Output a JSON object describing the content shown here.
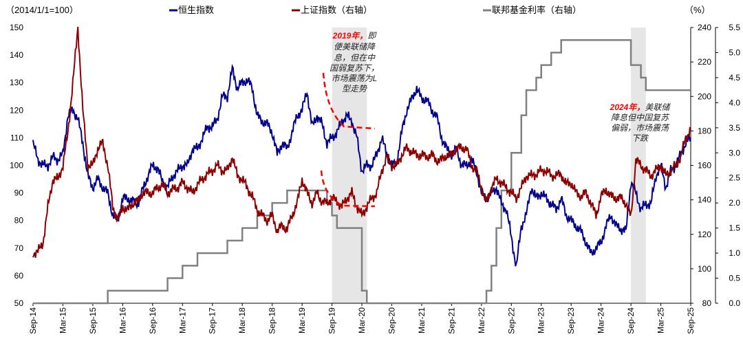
{
  "chart_data": {
    "type": "line",
    "left_axis_label": "（2014/1/1=100）",
    "right_axis_unit": "（%）",
    "left_ylim": [
      50,
      150
    ],
    "left_ticks": [
      "150",
      "140",
      "130",
      "120",
      "110",
      "100",
      "90",
      "80",
      "70",
      "60",
      "50"
    ],
    "right1_ylim": [
      80,
      240
    ],
    "right1_ticks": [
      "240",
      "220",
      "200",
      "180",
      "160",
      "140",
      "120",
      "100",
      "80"
    ],
    "right2_ylim": [
      0,
      5.5
    ],
    "right2_ticks": [
      "5.5",
      "5.0",
      "4.5",
      "4.0",
      "3.5",
      "3.0",
      "2.5",
      "2.0",
      "1.5",
      "1.0",
      "0.5",
      "0.0"
    ],
    "x_ticks": [
      "Sep-14",
      "Mar-15",
      "Sep-15",
      "Mar-16",
      "Sep-16",
      "Mar-17",
      "Sep-17",
      "Mar-18",
      "Sep-18",
      "Mar-19",
      "Sep-19",
      "Mar-20",
      "Sep-20",
      "Mar-21",
      "Sep-21",
      "Mar-22",
      "Sep-22",
      "Mar-23",
      "Sep-23",
      "Mar-24",
      "Sep-24",
      "Mar-25",
      "Sep-25"
    ],
    "x_note": "monthly values from Sep-14 to Sep-25",
    "legend": [
      {
        "name": "恒生指数",
        "color": "#00008B",
        "axis": "left"
      },
      {
        "name": "上证指数（右轴）",
        "color": "#8B0000",
        "axis": "right1"
      },
      {
        "name": "联邦基金利率（右轴）",
        "color": "#808080",
        "axis": "right2"
      }
    ],
    "series": [
      {
        "name": "恒生指数",
        "values": [
          108,
          102,
          100,
          100,
          103,
          102,
          104,
          118,
          120,
          117,
          108,
          96,
          92,
          95,
          92,
          90,
          82,
          80,
          88,
          88,
          87,
          86,
          91,
          96,
          100,
          99,
          94,
          92,
          96,
          98,
          100,
          100,
          106,
          106,
          110,
          114,
          114,
          117,
          125,
          125,
          135,
          128,
          130,
          131,
          128,
          118,
          116,
          115,
          112,
          104,
          108,
          106,
          112,
          118,
          120,
          127,
          114,
          118,
          115,
          108,
          110,
          112,
          116,
          118,
          116,
          110,
          98,
          100,
          100,
          104,
          110,
          104,
          100,
          101,
          112,
          120,
          124,
          128,
          124,
          124,
          120,
          118,
          110,
          106,
          104,
          106,
          100,
          100,
          102,
          98,
          90,
          88,
          90,
          92,
          86,
          84,
          74,
          63,
          78,
          82,
          92,
          88,
          90,
          88,
          86,
          84,
          88,
          82,
          80,
          78,
          76,
          72,
          68,
          70,
          72,
          78,
          82,
          78,
          77,
          76,
          94,
          90,
          84,
          86,
          86,
          96,
          100,
          92,
          98,
          100,
          104,
          108,
          110
        ]
      },
      {
        "name": "上证指数（右轴）",
        "values": [
          109,
          110,
          115,
          136,
          152,
          152,
          160,
          179,
          208,
          240,
          192,
          160,
          160,
          170,
          173,
          160,
          136,
          128,
          136,
          134,
          138,
          139,
          144,
          144,
          144,
          147,
          149,
          144,
          146,
          147,
          150,
          147,
          144,
          149,
          152,
          155,
          157,
          160,
          157,
          157,
          165,
          154,
          152,
          147,
          142,
          134,
          131,
          128,
          131,
          122,
          125,
          123,
          131,
          138,
          152,
          144,
          138,
          144,
          139,
          138,
          141,
          139,
          136,
          141,
          144,
          136,
          131,
          136,
          141,
          144,
          157,
          165,
          160,
          160,
          166,
          170,
          168,
          166,
          166,
          165,
          166,
          163,
          163,
          166,
          166,
          170,
          170,
          170,
          160,
          157,
          147,
          138,
          147,
          152,
          150,
          147,
          144,
          141,
          147,
          154,
          154,
          155,
          157,
          157,
          154,
          154,
          155,
          149,
          150,
          144,
          142,
          144,
          138,
          131,
          142,
          146,
          142,
          141,
          141,
          138,
          130,
          163,
          160,
          157,
          154,
          157,
          160,
          154,
          157,
          160,
          165,
          176,
          181
        ]
      },
      {
        "name": "联邦基金利率（右轴）",
        "steps": [
          [
            0,
            0
          ],
          [
            15,
            0.25
          ],
          [
            27,
            0.5
          ],
          [
            30,
            0.75
          ],
          [
            33,
            1.0
          ],
          [
            39,
            1.25
          ],
          [
            42,
            1.5
          ],
          [
            45,
            1.75
          ],
          [
            48,
            2.0
          ],
          [
            51,
            2.25
          ],
          [
            59,
            2.0
          ],
          [
            60,
            1.75
          ],
          [
            61,
            1.5
          ],
          [
            66,
            0.25
          ],
          [
            67,
            0
          ],
          [
            91,
            0.25
          ],
          [
            92,
            0.75
          ],
          [
            93,
            1.5
          ],
          [
            94,
            2.25
          ],
          [
            96,
            3.0
          ],
          [
            98,
            3.75
          ],
          [
            99,
            4.25
          ],
          [
            101,
            4.5
          ],
          [
            102,
            4.75
          ],
          [
            104,
            5.0
          ],
          [
            106,
            5.25
          ],
          [
            120,
            4.75
          ],
          [
            122,
            4.5
          ],
          [
            123,
            4.25
          ],
          [
            132,
            4.25
          ]
        ]
      }
    ],
    "shaded_periods": [
      [
        "Sep-19",
        "Apr-20"
      ],
      [
        "Sep-24",
        "Dec-24"
      ]
    ],
    "annotations": [
      {
        "highlight": "2019年，",
        "lines": [
          "即",
          "便美联储降",
          "息，但在中",
          "国弱复苏下，",
          "市场震荡为L",
          "型走势"
        ]
      },
      {
        "highlight": "2024年，",
        "lines": [
          "美联储",
          "降息但中国复苏",
          "偏弱，市场震荡",
          "下跌"
        ]
      }
    ]
  }
}
